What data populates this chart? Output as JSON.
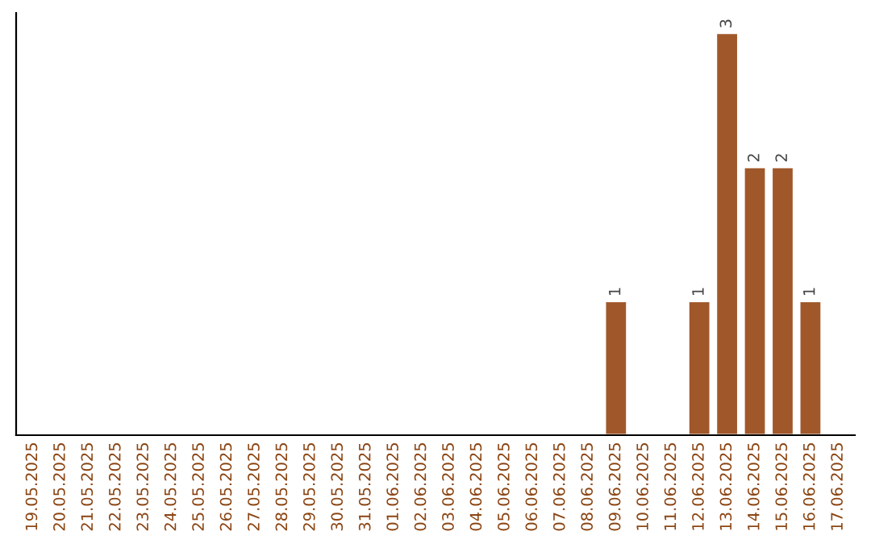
{
  "chart_data": {
    "type": "bar",
    "categories": [
      "19.05.2025",
      "20.05.2025",
      "21.05.2025",
      "22.05.2025",
      "23.05.2025",
      "24.05.2025",
      "25.05.2025",
      "26.05.2025",
      "27.05.2025",
      "28.05.2025",
      "29.05.2025",
      "30.05.2025",
      "31.05.2025",
      "01.06.2025",
      "02.06.2025",
      "03.06.2025",
      "04.06.2025",
      "05.06.2025",
      "06.06.2025",
      "07.06.2025",
      "08.06.2025",
      "09.06.2025",
      "10.06.2025",
      "11.06.2025",
      "12.06.2025",
      "13.06.2025",
      "14.06.2025",
      "15.06.2025",
      "16.06.2025",
      "17.06.2025"
    ],
    "values": [
      null,
      null,
      null,
      null,
      null,
      null,
      null,
      null,
      null,
      null,
      null,
      null,
      null,
      null,
      null,
      null,
      null,
      null,
      null,
      null,
      null,
      1,
      null,
      null,
      1,
      3,
      2,
      2,
      1,
      null
    ],
    "data_labels": true,
    "color": "#a0582b",
    "tick_labels": "x"
  }
}
